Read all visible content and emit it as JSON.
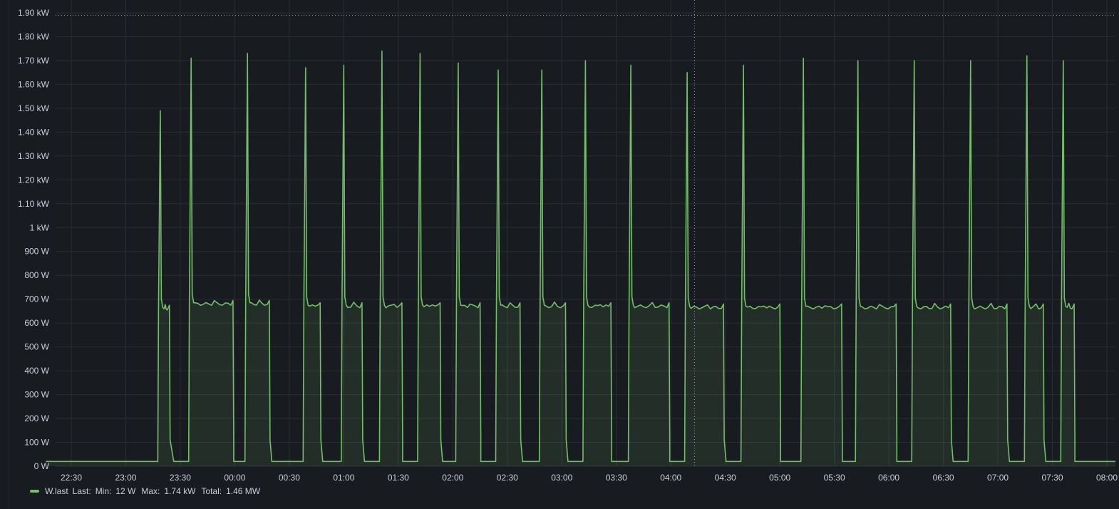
{
  "chart_data": {
    "type": "area",
    "title": "",
    "xlabel": "",
    "ylabel": "",
    "x_tick_labels": [
      "22:30",
      "23:00",
      "23:30",
      "00:00",
      "00:30",
      "01:00",
      "01:30",
      "02:00",
      "02:30",
      "03:00",
      "03:30",
      "04:00",
      "04:30",
      "05:00",
      "05:30",
      "06:00",
      "06:30",
      "07:00",
      "07:30",
      "08:00"
    ],
    "y_tick_labels": [
      "0 W",
      "100 W",
      "200 W",
      "300 W",
      "400 W",
      "500 W",
      "600 W",
      "700 W",
      "800 W",
      "900 W",
      "1 kW",
      "1.10 kW",
      "1.20 kW",
      "1.30 kW",
      "1.40 kW",
      "1.50 kW",
      "1.60 kW",
      "1.70 kW",
      "1.80 kW",
      "1.90 kW"
    ],
    "ylim": [
      0,
      1900
    ],
    "grid": true,
    "threshold_line_value": 1890,
    "hover_crosshair_time": "04:13",
    "series_color": "#73bf69",
    "series": [
      {
        "name": "W.last",
        "baseline": 20,
        "plateau": 670,
        "cycles": [
          {
            "on": "23:18",
            "peak": 1490,
            "off_high": "23:24",
            "off": "23:26",
            "level": 660
          },
          {
            "on": "23:35",
            "peak": 1710,
            "off_high": "23:59",
            "off": "23:59",
            "level": 680
          },
          {
            "on": "00:06",
            "peak": 1730,
            "off_high": "00:19",
            "off": "00:20",
            "level": 680
          },
          {
            "on": "00:38",
            "peak": 1670,
            "off_high": "00:47",
            "off": "00:48",
            "level": 670
          },
          {
            "on": "00:59",
            "peak": 1680,
            "off_high": "01:10",
            "off": "01:11",
            "level": 670
          },
          {
            "on": "01:20",
            "peak": 1740,
            "off_high": "01:32",
            "off": "01:32",
            "level": 670
          },
          {
            "on": "01:41",
            "peak": 1730,
            "off_high": "01:53",
            "off": "01:54",
            "level": 670
          },
          {
            "on": "02:02",
            "peak": 1690,
            "off_high": "02:15",
            "off": "02:15",
            "level": 670
          },
          {
            "on": "02:24",
            "peak": 1660,
            "off_high": "02:37",
            "off": "02:38",
            "level": 670
          },
          {
            "on": "02:48",
            "peak": 1660,
            "off_high": "03:02",
            "off": "03:03",
            "level": 670
          },
          {
            "on": "03:12",
            "peak": 1700,
            "off_high": "03:27",
            "off": "03:27",
            "level": 670
          },
          {
            "on": "03:37",
            "peak": 1680,
            "off_high": "03:59",
            "off": "03:59",
            "level": 670
          },
          {
            "on": "04:08",
            "peak": 1650,
            "off_high": "04:29",
            "off": "04:30",
            "level": 665
          },
          {
            "on": "04:39",
            "peak": 1680,
            "off_high": "05:00",
            "off": "05:00",
            "level": 665
          },
          {
            "on": "05:12",
            "peak": 1710,
            "off_high": "05:34",
            "off": "05:34",
            "level": 665
          },
          {
            "on": "05:42",
            "peak": 1700,
            "off_high": "06:04",
            "off": "06:04",
            "level": 665
          },
          {
            "on": "06:13",
            "peak": 1700,
            "off_high": "06:34",
            "off": "06:35",
            "level": 665
          },
          {
            "on": "06:44",
            "peak": 1700,
            "off_high": "07:05",
            "off": "07:06",
            "level": 665
          },
          {
            "on": "07:15",
            "peak": 1720,
            "off_high": "07:25",
            "off": "07:26",
            "level": 665
          },
          {
            "on": "07:35",
            "peak": 1700,
            "off_high": "07:42",
            "off": "07:42",
            "level": 665
          }
        ]
      }
    ],
    "legend": {
      "placement": "bottom-left",
      "series_name": "W.last",
      "last_label": "Last:",
      "min_label": "Min:",
      "min_value": "12 W",
      "max_label": "Max:",
      "max_value": "1.74 kW",
      "total_label": "Total:",
      "total_value": "1.46 MW"
    }
  }
}
